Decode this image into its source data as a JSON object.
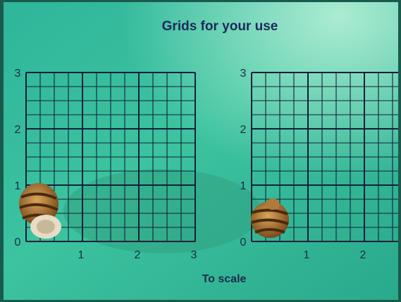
{
  "title": "Grids for your use",
  "caption": "To scale",
  "grids": [
    {
      "y_labels": [
        0,
        1,
        2,
        3
      ],
      "x_labels": [
        1,
        2,
        3
      ]
    },
    {
      "y_labels": [
        0,
        1,
        2,
        3
      ],
      "x_labels": [
        1,
        2
      ]
    }
  ]
}
